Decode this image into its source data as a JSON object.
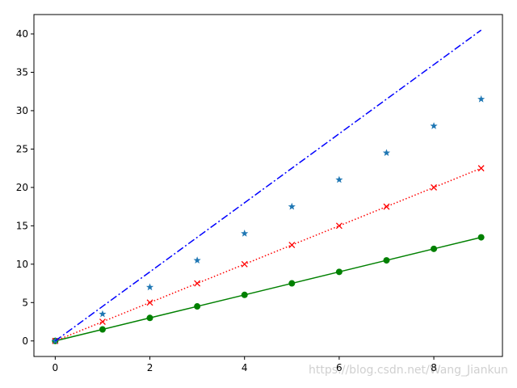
{
  "chart_data": {
    "type": "line",
    "x": [
      0,
      1,
      2,
      3,
      4,
      5,
      6,
      7,
      8,
      9
    ],
    "series": [
      {
        "color": "#008000",
        "marker": "o",
        "linestyle": "solid",
        "values": [
          0,
          1.5,
          3,
          4.5,
          6,
          7.5,
          9,
          10.5,
          12,
          13.5
        ]
      },
      {
        "color": "#ff0000",
        "marker": "x",
        "linestyle": "dotted",
        "values": [
          0,
          2.5,
          5,
          7.5,
          10,
          12.5,
          15,
          17.5,
          20,
          22.5
        ]
      },
      {
        "color": "#1f77b4",
        "marker": "*",
        "linestyle": "none",
        "values": [
          0,
          3.5,
          7,
          10.5,
          14,
          17.5,
          21,
          24.5,
          28,
          31.5
        ]
      },
      {
        "color": "#0000ff",
        "marker": "none",
        "linestyle": "dashdot",
        "values": [
          0,
          4.5,
          9,
          13.5,
          18,
          22.5,
          27,
          31.5,
          36,
          40.5
        ]
      }
    ],
    "xlim": [
      -0.45,
      9.45
    ],
    "xticks": [
      0,
      2,
      4,
      6,
      8
    ],
    "ylim": [
      -2.025,
      42.525
    ],
    "yticks": [
      0,
      5,
      10,
      15,
      20,
      25,
      30,
      35,
      40
    ],
    "grid": false
  },
  "watermark": "https://blog.csdn.net/Wang_Jiankun"
}
